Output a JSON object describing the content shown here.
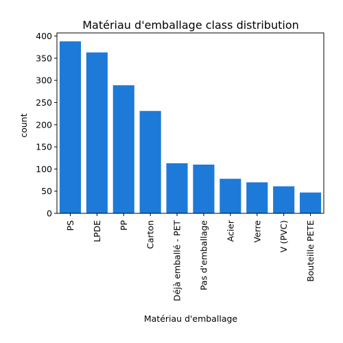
{
  "chart_data": {
    "type": "bar",
    "title": "Matériau d'emballage class distribution",
    "xlabel": "Matériau d'emballage",
    "ylabel": "count",
    "categories": [
      "PS",
      "LPDE",
      "PP",
      "Carton",
      "Déjà emballé - PET",
      "Pas d'emballage",
      "Acier",
      "Verre",
      "V (PVC)",
      "Bouteille PETE"
    ],
    "values": [
      388,
      363,
      289,
      231,
      113,
      110,
      78,
      70,
      61,
      47
    ],
    "ylim": [
      0,
      407
    ],
    "yticks": [
      0,
      50,
      100,
      150,
      200,
      250,
      300,
      350,
      400
    ],
    "bar_color": "#1e7ad8",
    "grid": false,
    "legend": "none"
  }
}
